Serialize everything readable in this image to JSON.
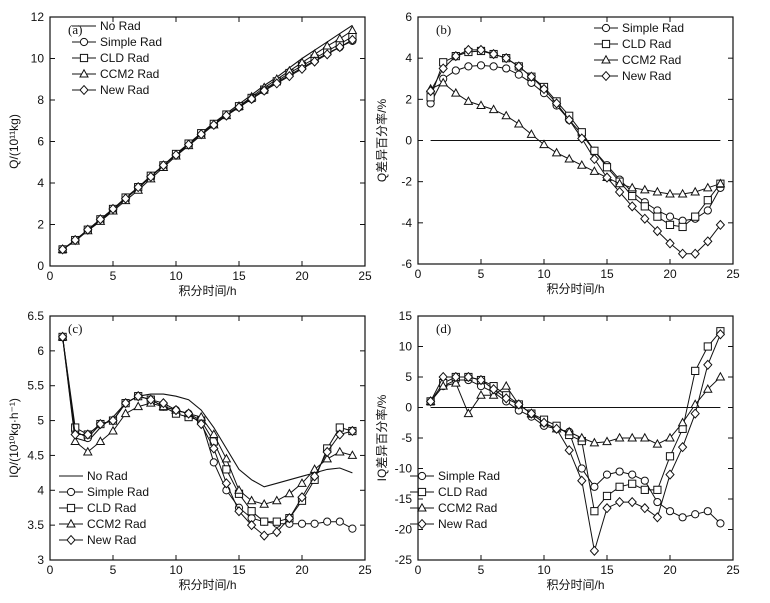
{
  "chart_data": [
    {
      "type": "line",
      "panel_label": "(a)",
      "xlabel": "积分时间/h",
      "ylabel": "Q/(10¹¹kg)",
      "xlim": [
        0,
        25
      ],
      "ylim": [
        0,
        12
      ],
      "xticks": [
        0,
        5,
        10,
        15,
        20,
        25
      ],
      "yticks": [
        0,
        2,
        4,
        6,
        8,
        10,
        12
      ],
      "legend_position": "top-left",
      "series": [
        {
          "name": "No Rad",
          "marker": "none",
          "x": [
            1,
            2,
            3,
            4,
            5,
            6,
            7,
            8,
            9,
            10,
            11,
            12,
            13,
            14,
            15,
            16,
            17,
            18,
            19,
            20,
            21,
            22,
            23,
            24
          ],
          "values": [
            0.8,
            1.25,
            1.7,
            2.2,
            2.7,
            3.25,
            3.75,
            4.3,
            4.85,
            5.4,
            5.9,
            6.4,
            6.9,
            7.35,
            7.8,
            8.25,
            8.7,
            9.1,
            9.55,
            10.0,
            10.4,
            10.8,
            11.2,
            11.6
          ]
        },
        {
          "name": "Simple Rad",
          "marker": "circle",
          "x": [
            1,
            2,
            3,
            4,
            5,
            6,
            7,
            8,
            9,
            10,
            11,
            12,
            13,
            14,
            15,
            16,
            17,
            18,
            19,
            20,
            21,
            22,
            23,
            24
          ],
          "values": [
            0.8,
            1.25,
            1.75,
            2.25,
            2.75,
            3.25,
            3.8,
            4.3,
            4.85,
            5.35,
            5.85,
            6.35,
            6.8,
            7.25,
            7.65,
            8.05,
            8.45,
            8.85,
            9.2,
            9.55,
            9.9,
            10.25,
            10.55,
            10.85
          ]
        },
        {
          "name": "CLD Rad",
          "marker": "square",
          "x": [
            1,
            2,
            3,
            4,
            5,
            6,
            7,
            8,
            9,
            10,
            11,
            12,
            13,
            14,
            15,
            16,
            17,
            18,
            19,
            20,
            21,
            22,
            23,
            24
          ],
          "values": [
            0.8,
            1.25,
            1.75,
            2.25,
            2.75,
            3.3,
            3.8,
            4.35,
            4.85,
            5.4,
            5.9,
            6.4,
            6.85,
            7.3,
            7.7,
            8.1,
            8.5,
            8.9,
            9.3,
            9.65,
            10.0,
            10.35,
            10.7,
            11.05
          ]
        },
        {
          "name": "CCM2 Rad",
          "marker": "triangle",
          "x": [
            1,
            2,
            3,
            4,
            5,
            6,
            7,
            8,
            9,
            10,
            11,
            12,
            13,
            14,
            15,
            16,
            17,
            18,
            19,
            20,
            21,
            22,
            23,
            24
          ],
          "values": [
            0.8,
            1.2,
            1.7,
            2.15,
            2.65,
            3.15,
            3.65,
            4.2,
            4.75,
            5.3,
            5.8,
            6.3,
            6.8,
            7.25,
            7.7,
            8.15,
            8.6,
            9.0,
            9.4,
            9.8,
            10.2,
            10.6,
            10.95,
            11.35
          ]
        },
        {
          "name": "New Rad",
          "marker": "diamond",
          "x": [
            1,
            2,
            3,
            4,
            5,
            6,
            7,
            8,
            9,
            10,
            11,
            12,
            13,
            14,
            15,
            16,
            17,
            18,
            19,
            20,
            21,
            22,
            23,
            24
          ],
          "values": [
            0.8,
            1.25,
            1.75,
            2.25,
            2.75,
            3.25,
            3.8,
            4.3,
            4.85,
            5.35,
            5.85,
            6.35,
            6.8,
            7.25,
            7.65,
            8.05,
            8.45,
            8.8,
            9.15,
            9.5,
            9.85,
            10.2,
            10.55,
            10.9
          ]
        }
      ]
    },
    {
      "type": "line",
      "panel_label": "(b)",
      "xlabel": "积分时间/h",
      "ylabel": "Q差异百分率/%",
      "xlim": [
        0,
        25
      ],
      "ylim": [
        -6,
        6
      ],
      "xticks": [
        0,
        5,
        10,
        15,
        20,
        25
      ],
      "yticks": [
        -6,
        -4,
        -2,
        0,
        2,
        4,
        6
      ],
      "legend_position": "top-right",
      "zero_line": [
        1,
        24
      ],
      "series": [
        {
          "name": "Simple Rad",
          "marker": "circle",
          "x": [
            1,
            2,
            3,
            4,
            5,
            6,
            7,
            8,
            9,
            10,
            11,
            12,
            13,
            14,
            15,
            16,
            17,
            18,
            19,
            20,
            21,
            22,
            23,
            24
          ],
          "values": [
            1.8,
            3.0,
            3.4,
            3.6,
            3.65,
            3.6,
            3.5,
            3.2,
            2.8,
            2.3,
            1.7,
            1.0,
            0.3,
            -0.5,
            -1.2,
            -1.9,
            -2.5,
            -3.0,
            -3.4,
            -3.7,
            -3.9,
            -3.8,
            -3.4,
            -2.3
          ]
        },
        {
          "name": "CLD Rad",
          "marker": "square",
          "x": [
            1,
            2,
            3,
            4,
            5,
            6,
            7,
            8,
            9,
            10,
            11,
            12,
            13,
            14,
            15,
            16,
            17,
            18,
            19,
            20,
            21,
            22,
            23,
            24
          ],
          "values": [
            2.1,
            3.8,
            4.1,
            4.3,
            4.35,
            4.2,
            4.0,
            3.6,
            3.1,
            2.6,
            1.9,
            1.2,
            0.4,
            -0.5,
            -1.3,
            -2.0,
            -2.7,
            -3.2,
            -3.7,
            -4.1,
            -4.2,
            -3.7,
            -2.9,
            -2.1
          ]
        },
        {
          "name": "CCM2 Rad",
          "marker": "triangle",
          "x": [
            1,
            2,
            3,
            4,
            5,
            6,
            7,
            8,
            9,
            10,
            11,
            12,
            13,
            14,
            15,
            16,
            17,
            18,
            19,
            20,
            21,
            22,
            23,
            24
          ],
          "values": [
            2.5,
            2.8,
            2.3,
            1.9,
            1.7,
            1.5,
            1.2,
            0.8,
            0.3,
            -0.2,
            -0.6,
            -0.9,
            -1.2,
            -1.5,
            -1.8,
            -2.1,
            -2.3,
            -2.4,
            -2.5,
            -2.6,
            -2.6,
            -2.5,
            -2.3,
            -2.1
          ]
        },
        {
          "name": "New Rad",
          "marker": "diamond",
          "x": [
            1,
            2,
            3,
            4,
            5,
            6,
            7,
            8,
            9,
            10,
            11,
            12,
            13,
            14,
            15,
            16,
            17,
            18,
            19,
            20,
            21,
            22,
            23,
            24
          ],
          "values": [
            2.4,
            3.5,
            4.1,
            4.4,
            4.4,
            4.2,
            4.0,
            3.6,
            3.1,
            2.5,
            1.8,
            1.0,
            0.1,
            -0.9,
            -1.8,
            -2.5,
            -3.2,
            -3.8,
            -4.4,
            -5.0,
            -5.5,
            -5.5,
            -4.9,
            -4.1
          ]
        }
      ]
    },
    {
      "type": "line",
      "panel_label": "(c)",
      "xlabel": "积分时间/h",
      "ylabel": "IQ/(10¹⁰kg·h⁻¹)",
      "xlim": [
        0,
        25
      ],
      "ylim": [
        3,
        6.5
      ],
      "xticks": [
        0,
        5,
        10,
        15,
        20,
        25
      ],
      "yticks": [
        3,
        3.5,
        4,
        4.5,
        5,
        5.5,
        6,
        6.5
      ],
      "legend_position": "bottom-left",
      "series": [
        {
          "name": "No Rad",
          "marker": "none",
          "x": [
            1,
            2,
            3,
            4,
            5,
            6,
            7,
            8,
            9,
            10,
            11,
            12,
            13,
            14,
            15,
            16,
            17,
            18,
            19,
            20,
            21,
            22,
            23,
            24
          ],
          "values": [
            6.2,
            4.75,
            4.7,
            4.9,
            5.05,
            5.25,
            5.35,
            5.38,
            5.38,
            5.35,
            5.3,
            5.15,
            4.9,
            4.6,
            4.3,
            4.15,
            4.05,
            4.1,
            4.15,
            4.2,
            4.25,
            4.3,
            4.32,
            4.25
          ]
        },
        {
          "name": "Simple Rad",
          "marker": "circle",
          "x": [
            1,
            2,
            3,
            4,
            5,
            6,
            7,
            8,
            9,
            10,
            11,
            12,
            13,
            14,
            15,
            16,
            17,
            18,
            19,
            20,
            21,
            22,
            23,
            24
          ],
          "values": [
            6.2,
            4.85,
            4.75,
            4.95,
            5.0,
            5.25,
            5.35,
            5.3,
            5.2,
            5.15,
            5.1,
            5.0,
            4.4,
            4.0,
            3.75,
            3.6,
            3.55,
            3.52,
            3.52,
            3.52,
            3.52,
            3.55,
            3.55,
            3.45
          ]
        },
        {
          "name": "CLD Rad",
          "marker": "square",
          "x": [
            1,
            2,
            3,
            4,
            5,
            6,
            7,
            8,
            9,
            10,
            11,
            12,
            13,
            14,
            15,
            16,
            17,
            18,
            19,
            20,
            21,
            22,
            23,
            24
          ],
          "values": [
            6.2,
            4.9,
            4.8,
            4.95,
            5.0,
            5.25,
            5.35,
            5.3,
            5.2,
            5.1,
            5.05,
            5.0,
            4.7,
            4.3,
            3.95,
            3.7,
            3.55,
            3.55,
            3.6,
            3.85,
            4.15,
            4.6,
            4.9,
            4.85
          ]
        },
        {
          "name": "CCM2 Rad",
          "marker": "triangle",
          "x": [
            1,
            2,
            3,
            4,
            5,
            6,
            7,
            8,
            9,
            10,
            11,
            12,
            13,
            14,
            15,
            16,
            17,
            18,
            19,
            20,
            21,
            22,
            23,
            24
          ],
          "values": [
            6.2,
            4.7,
            4.55,
            4.7,
            4.85,
            5.1,
            5.2,
            5.25,
            5.2,
            5.15,
            5.1,
            5.05,
            4.8,
            4.45,
            4.0,
            3.85,
            3.8,
            3.85,
            3.95,
            4.1,
            4.3,
            4.45,
            4.55,
            4.5
          ]
        },
        {
          "name": "New Rad",
          "marker": "diamond",
          "x": [
            1,
            2,
            3,
            4,
            5,
            6,
            7,
            8,
            9,
            10,
            11,
            12,
            13,
            14,
            15,
            16,
            17,
            18,
            19,
            20,
            21,
            22,
            23,
            24
          ],
          "values": [
            6.2,
            4.8,
            4.8,
            4.95,
            5.0,
            5.25,
            5.35,
            5.3,
            5.25,
            5.15,
            5.1,
            4.95,
            4.6,
            4.1,
            3.7,
            3.5,
            3.35,
            3.4,
            3.6,
            3.9,
            4.2,
            4.55,
            4.8,
            4.85
          ]
        }
      ]
    },
    {
      "type": "line",
      "panel_label": "(d)",
      "xlabel": "积分时间/h",
      "ylabel": "IQ差异百分率/%",
      "xlim": [
        0,
        25
      ],
      "ylim": [
        -25,
        15
      ],
      "xticks": [
        0,
        5,
        10,
        15,
        20,
        25
      ],
      "yticks": [
        -25,
        -20,
        -15,
        -10,
        -5,
        0,
        5,
        10,
        15
      ],
      "legend_position": "bottom-left",
      "zero_line": [
        1,
        24
      ],
      "series": [
        {
          "name": "Simple Rad",
          "marker": "circle",
          "x": [
            1,
            2,
            3,
            4,
            5,
            6,
            7,
            8,
            9,
            10,
            11,
            12,
            13,
            14,
            15,
            16,
            17,
            18,
            19,
            20,
            21,
            22,
            23,
            24
          ],
          "values": [
            1.0,
            3.5,
            4.5,
            4.5,
            3.5,
            2.5,
            1.0,
            -0.5,
            -1.5,
            -3.0,
            -3.5,
            -4.0,
            -10.0,
            -13.0,
            -11.0,
            -10.5,
            -11.0,
            -12.0,
            -15.5,
            -17.0,
            -18.0,
            -17.5,
            -17.0,
            -19.0
          ]
        },
        {
          "name": "CLD Rad",
          "marker": "square",
          "x": [
            1,
            2,
            3,
            4,
            5,
            6,
            7,
            8,
            9,
            10,
            11,
            12,
            13,
            14,
            15,
            16,
            17,
            18,
            19,
            20,
            21,
            22,
            23,
            24
          ],
          "values": [
            1.0,
            4.0,
            5.0,
            5.0,
            4.5,
            3.5,
            2.0,
            0.5,
            -1.0,
            -2.0,
            -3.0,
            -4.5,
            -5.5,
            -17.0,
            -14.5,
            -13.0,
            -12.5,
            -13.5,
            -13.5,
            -8.0,
            -3.5,
            6.0,
            10.0,
            12.5
          ]
        },
        {
          "name": "CCM2 Rad",
          "marker": "triangle",
          "x": [
            1,
            2,
            3,
            4,
            5,
            6,
            7,
            8,
            9,
            10,
            11,
            12,
            13,
            14,
            15,
            16,
            17,
            18,
            19,
            20,
            21,
            22,
            23,
            24
          ],
          "values": [
            1.0,
            3.5,
            4.0,
            -1.0,
            2.0,
            2.0,
            3.5,
            0.5,
            -1.0,
            -2.5,
            -3.5,
            -4.0,
            -5.0,
            -5.8,
            -5.6,
            -5.0,
            -5.0,
            -5.0,
            -6.0,
            -5.0,
            -2.5,
            0.5,
            3.0,
            5.0
          ]
        },
        {
          "name": "New Rad",
          "marker": "diamond",
          "x": [
            1,
            2,
            3,
            4,
            5,
            6,
            7,
            8,
            9,
            10,
            11,
            12,
            13,
            14,
            15,
            16,
            17,
            18,
            19,
            20,
            21,
            22,
            23,
            24
          ],
          "values": [
            1.0,
            5.0,
            5.0,
            5.0,
            4.5,
            3.0,
            1.5,
            0.5,
            -1.0,
            -2.5,
            -3.5,
            -7.0,
            -12.0,
            -23.5,
            -16.5,
            -15.5,
            -15.5,
            -16.5,
            -18.0,
            -11.0,
            -6.5,
            -1.0,
            7.0,
            12.0
          ]
        }
      ]
    }
  ]
}
